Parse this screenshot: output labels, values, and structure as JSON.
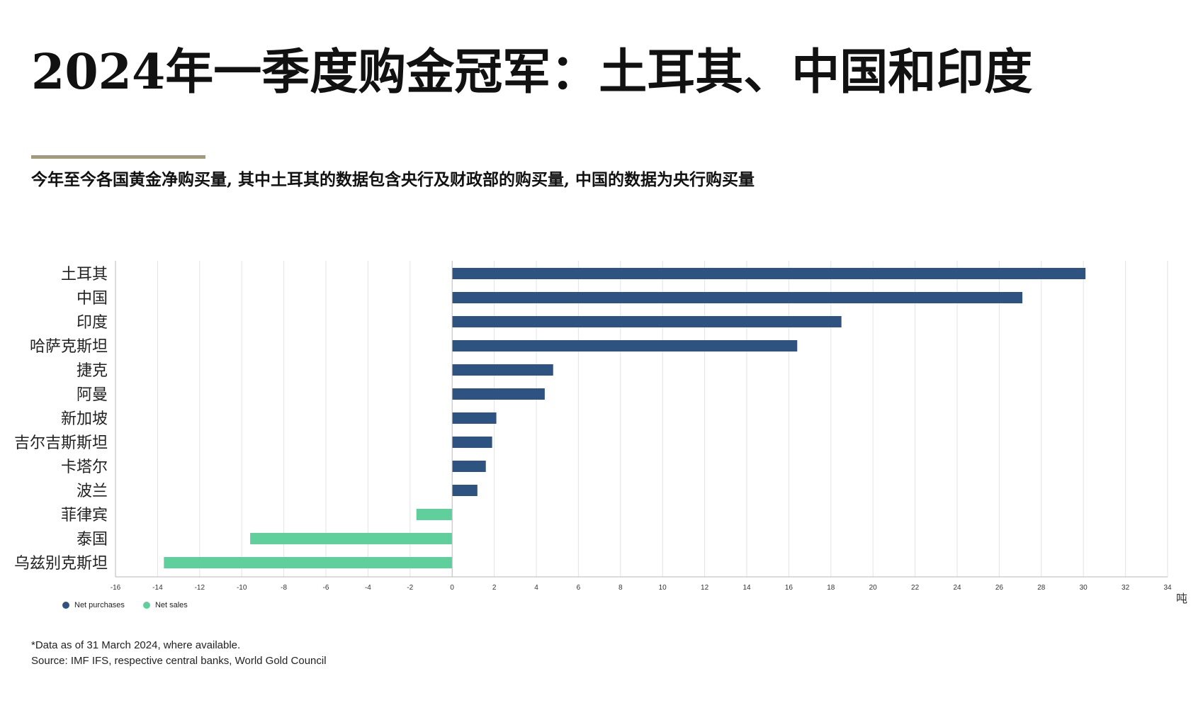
{
  "header": {
    "title": "2024年一季度购金冠军：土耳其、中国和印度",
    "subtitle": "今年至今各国黄金净购买量, 其中土耳其的数据包含央行及财政部的购买量, 中国的数据为央行购买量"
  },
  "colors": {
    "accent_rule": "#a39a76",
    "net_purchases": "#2f5380",
    "net_sales": "#5fcf9b",
    "grid": "#e3e3e3",
    "axis": "#b9b9b9"
  },
  "legend": {
    "items": [
      {
        "label": "Net purchases",
        "color": "#2f5380"
      },
      {
        "label": "Net sales",
        "color": "#5fcf9b"
      }
    ]
  },
  "notes": {
    "line1": "*Data as of 31 March 2024, where available.",
    "line2": "Source: IMF IFS, respective central banks, World Gold Council"
  },
  "chart_data": {
    "type": "bar",
    "orientation": "horizontal",
    "categories": [
      "土耳其",
      "中国",
      "印度",
      "哈萨克斯坦",
      "捷克",
      "阿曼",
      "新加坡",
      "吉尔吉斯斯坦",
      "卡塔尔",
      "波兰",
      "菲律宾",
      "泰国",
      "乌兹别克斯坦"
    ],
    "values": [
      30.1,
      27.1,
      18.5,
      16.4,
      4.8,
      4.4,
      2.1,
      1.9,
      1.6,
      1.2,
      -1.7,
      -9.6,
      -13.7
    ],
    "series": [
      {
        "name": "Net purchases",
        "color": "#2f5380"
      },
      {
        "name": "Net sales",
        "color": "#5fcf9b"
      }
    ],
    "xlim": [
      -16,
      34
    ],
    "x_ticks": [
      -16,
      -14,
      -12,
      -10,
      -8,
      -6,
      -4,
      -2,
      0,
      2,
      4,
      6,
      8,
      10,
      12,
      14,
      16,
      18,
      20,
      22,
      24,
      26,
      28,
      30,
      32,
      34
    ],
    "unit_label": "吨",
    "grid": true,
    "legend_position": "bottom-left"
  }
}
